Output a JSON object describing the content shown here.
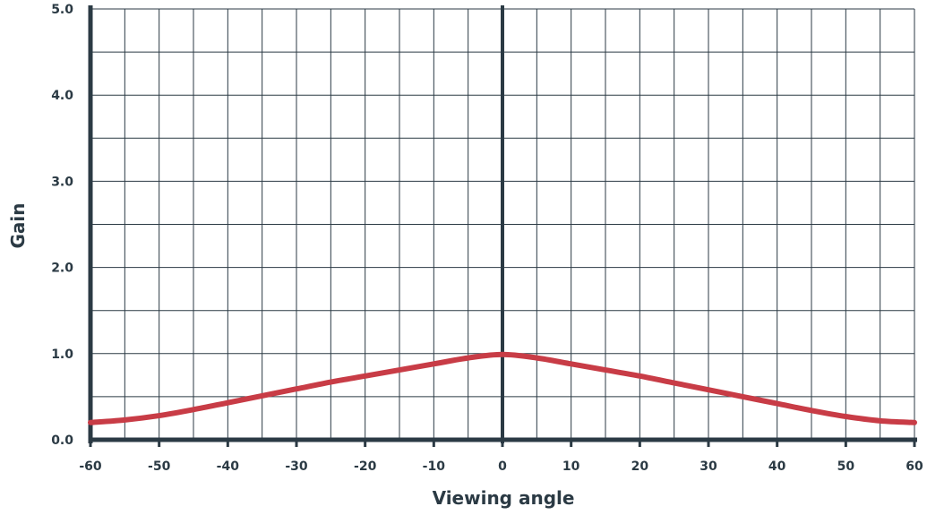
{
  "chart_data": {
    "type": "line",
    "title": "",
    "xlabel": "Viewing angle",
    "ylabel": "Gain",
    "xlim": [
      -60,
      60
    ],
    "ylim": [
      0,
      5
    ],
    "x_ticks": [
      -60,
      -50,
      -40,
      -30,
      -20,
      -10,
      0,
      10,
      20,
      30,
      40,
      50,
      60
    ],
    "x_tick_labels": [
      "-60",
      "-50",
      "-40",
      "-30",
      "-20",
      "-10",
      "0",
      "10",
      "20",
      "30",
      "40",
      "50",
      "60"
    ],
    "y_ticks": [
      0,
      1,
      2,
      3,
      4,
      5
    ],
    "y_tick_labels": [
      "0.0",
      "1.0",
      "2.0",
      "3.0",
      "4.0",
      "5.0"
    ],
    "grid": true,
    "grid_x_step": 5,
    "grid_y_step": 0.5,
    "series": [
      {
        "color": "#c83c46",
        "x": [
          -60,
          -55,
          -50,
          -45,
          -40,
          -35,
          -30,
          -25,
          -20,
          -15,
          -10,
          -5,
          0,
          5,
          10,
          15,
          20,
          25,
          30,
          35,
          40,
          45,
          50,
          55,
          60
        ],
        "y": [
          0.2,
          0.23,
          0.28,
          0.35,
          0.43,
          0.51,
          0.59,
          0.67,
          0.74,
          0.81,
          0.88,
          0.95,
          0.99,
          0.95,
          0.88,
          0.81,
          0.74,
          0.66,
          0.58,
          0.5,
          0.42,
          0.34,
          0.27,
          0.22,
          0.2
        ]
      }
    ]
  },
  "colors": {
    "axis": "#2b3a44",
    "grid": "#2b3a44",
    "series": "#c83c46"
  }
}
